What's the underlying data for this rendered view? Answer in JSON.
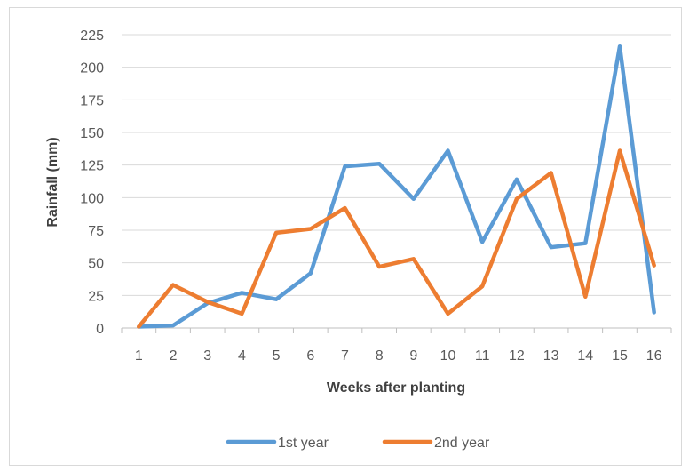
{
  "chart_data": {
    "type": "line",
    "title": "",
    "xlabel": "Weeks after planting",
    "ylabel": "Rainfall (mm)",
    "x": [
      1,
      2,
      3,
      4,
      5,
      6,
      7,
      8,
      9,
      10,
      11,
      12,
      13,
      14,
      15,
      16
    ],
    "ylim": [
      0,
      225
    ],
    "yticks": [
      0,
      25,
      50,
      75,
      100,
      125,
      150,
      175,
      200,
      225
    ],
    "grid": true,
    "legend_position": "bottom",
    "series": [
      {
        "name": "1st year",
        "color": "#5B9BD5",
        "values": [
          1,
          2,
          19,
          27,
          22,
          42,
          124,
          126,
          99,
          136,
          66,
          114,
          62,
          65,
          216,
          12
        ]
      },
      {
        "name": "2nd year",
        "color": "#ED7D31",
        "values": [
          1,
          33,
          20,
          11,
          73,
          76,
          92,
          47,
          53,
          11,
          32,
          99,
          119,
          24,
          136,
          48
        ]
      }
    ]
  }
}
